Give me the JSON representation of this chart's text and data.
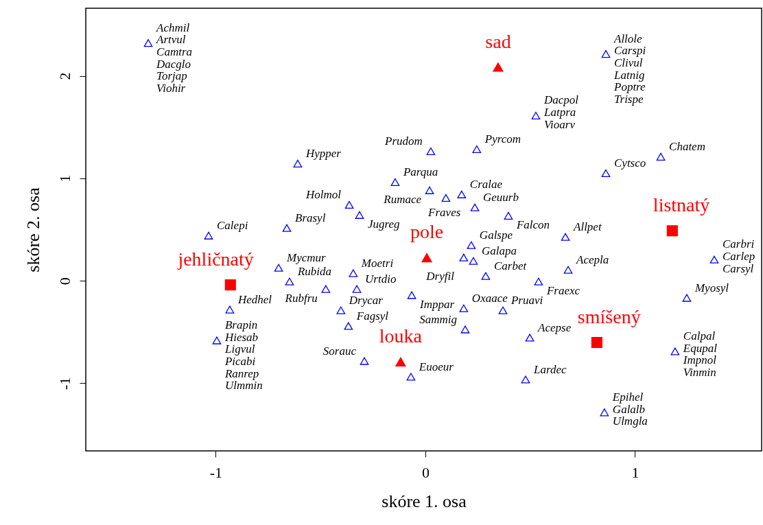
{
  "chart_data": {
    "type": "scatter",
    "xlabel": "skóre 1. osa",
    "ylabel": "skóre 2. osa",
    "xlim": [
      -1.62,
      1.604
    ],
    "ylim": [
      -1.66,
      2.66
    ],
    "xticks": [
      -1,
      0,
      1
    ],
    "yticks": [
      -1,
      0,
      1,
      2
    ],
    "grid": false,
    "series": [
      {
        "color": "#0000ff",
        "marker": "triangle",
        "x": [
          -1.322,
          0.861,
          0.527,
          1.123,
          -0.609,
          0.026,
          0.245,
          0.861,
          -0.144,
          0.02,
          0.173,
          0.098,
          0.236,
          -0.363,
          -0.314,
          0.396,
          -0.661,
          -1.034,
          0.668,
          0.219,
          0.183,
          0.229,
          -0.7,
          -0.344,
          0.288,
          0.681,
          -0.648,
          0.54,
          1.378,
          -0.475,
          -0.327,
          -0.065,
          1.247,
          -0.933,
          -0.403,
          0.183,
          0.37,
          -0.367,
          0.19,
          -0.995,
          0.498,
          1.191,
          -0.291,
          -0.069,
          0.478,
          0.854
        ],
        "values": [
          2.321,
          2.214,
          1.612,
          1.211,
          1.144,
          1.264,
          1.284,
          1.05,
          0.963,
          0.883,
          0.843,
          0.809,
          0.716,
          0.742,
          0.642,
          0.635,
          0.515,
          0.441,
          0.428,
          0.348,
          0.227,
          0.194,
          0.127,
          0.074,
          0.047,
          0.107,
          -0.007,
          -0.007,
          0.207,
          -0.08,
          -0.08,
          -0.14,
          -0.167,
          -0.281,
          -0.288,
          -0.268,
          -0.288,
          -0.441,
          -0.475,
          -0.582,
          -0.555,
          -0.689,
          -0.783,
          -0.936,
          -0.963,
          -1.284
        ],
        "value_labels": [
          "Achmil\nArtvul\nCamtra\nDacglo\nTorjap\nViohir",
          "Allole\nCarspi\nClivul\nLatnig\nPoptre\nTrispe",
          "Dacpol\nLatpra\nVioarv",
          "Chatem",
          "Hypper",
          "Prudom",
          "Pyrcom",
          "Cytsco",
          "Parqua",
          "Rumace",
          "Cralae",
          "Fraves",
          "Geuurb",
          "Holmol",
          "Jugreg",
          "Falcon",
          "Brasyl",
          "Calepi",
          "Allpet",
          "Galspe",
          "Dryfil",
          "Galapa",
          "Mycmur",
          "Moetri",
          "Carbet",
          "Acepla",
          "Rubida",
          "Fraexc",
          "Carbri\nCarlep\nCarsyl",
          "Rubfru",
          "Urtdio",
          "Imppar",
          "Myosyl",
          "Hedhel",
          "Drycar",
          "Oxaace",
          "Pruavi",
          "Fagsyl",
          "Sammig",
          "Brapin\nHiesab\nLigvul\nPicabi\nRanrep\nUlmmin",
          "Acepse",
          "Calpal\nEqupal\nImpnol\nVinmin",
          "Sorauc",
          "Euoeur",
          "Lardec",
          "Epihel\nGalalb\nUlmgla"
        ]
      },
      {
        "color": "#ff0000",
        "marker": "triangle",
        "x": [
          0.347,
          0.007,
          -0.118
        ],
        "values": [
          2.087,
          0.227,
          -0.789
        ],
        "value_labels": [
          "sad",
          "pole",
          "louka"
        ]
      },
      {
        "color": "#ff0000",
        "marker": "square",
        "x": [
          -0.93,
          1.178,
          0.818
        ],
        "values": [
          -0.04,
          0.488,
          -0.602
        ],
        "value_labels": [
          "jehličnatý",
          "listnatý",
          "smíšený"
        ]
      }
    ]
  }
}
